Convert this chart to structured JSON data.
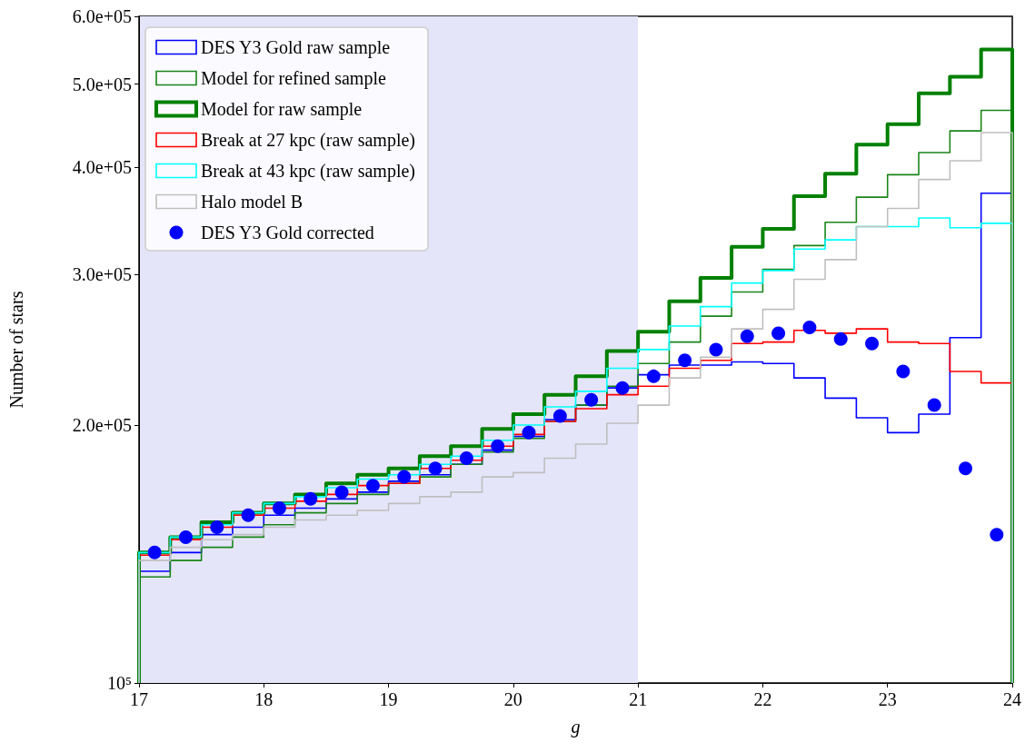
{
  "chart_data": {
    "type": "histogram",
    "xlabel": "g",
    "ylabel": "Number of stars",
    "bins": [
      17,
      17.25,
      17.5,
      17.75,
      18,
      18.25,
      18.5,
      18.75,
      19,
      19.25,
      19.5,
      19.75,
      20,
      20.25,
      20.5,
      20.75,
      21,
      21.25,
      21.5,
      21.75,
      22,
      22.25,
      22.5,
      22.75,
      23,
      23.25,
      23.5,
      23.75,
      24
    ],
    "series": [
      {
        "name": "DES Y3 Gold raw sample",
        "color": "#0000ff",
        "values": [
          135000,
          142000,
          149000,
          152000,
          157000,
          160000,
          164000,
          167000,
          172000,
          175000,
          180000,
          187000,
          194000,
          203000,
          211000,
          221000,
          229000,
          235000,
          235000,
          237000,
          236000,
          227000,
          215000,
          204000,
          196000,
          206000,
          253000,
          373000
        ]
      },
      {
        "name": "Model for refined sample",
        "color": "#1a851a",
        "values": [
          133000,
          139000,
          144000,
          148000,
          153000,
          158000,
          162000,
          166000,
          171000,
          174000,
          180000,
          186000,
          193000,
          202000,
          211000,
          222000,
          236000,
          250000,
          268000,
          286000,
          304000,
          324000,
          345000,
          369000,
          392000,
          416000,
          441000,
          466000
        ]
      },
      {
        "name": "Model for raw sample",
        "color": "#008000",
        "values": [
          142000,
          148000,
          154000,
          158000,
          162000,
          166000,
          171000,
          175000,
          178000,
          184000,
          189000,
          198000,
          206000,
          217000,
          228000,
          244000,
          257000,
          279000,
          297000,
          323000,
          339000,
          370000,
          393000,
          425000,
          449000,
          488000,
          510000,
          549000
        ]
      },
      {
        "name": "Break at 27 kpc (raw sample)",
        "color": "#ff0000",
        "values": [
          141000,
          147000,
          152000,
          157000,
          160000,
          163000,
          166000,
          170000,
          171000,
          178000,
          182000,
          189000,
          195000,
          202000,
          209000,
          217000,
          222000,
          233000,
          238000,
          249000,
          250000,
          258000,
          256000,
          259000,
          250000,
          249000,
          231000,
          224000
        ]
      },
      {
        "name": "Break at 43 kpc (raw sample)",
        "color": "#00ffff",
        "values": [
          142000,
          148000,
          153000,
          158000,
          162000,
          165000,
          169000,
          173000,
          175000,
          180000,
          184000,
          192000,
          200000,
          210000,
          219000,
          233000,
          245000,
          261000,
          275000,
          293000,
          303000,
          321000,
          329000,
          341000,
          341000,
          349000,
          340000,
          344000
        ]
      },
      {
        "name": "Halo model B",
        "color": "#bfbfbf",
        "values": [
          139000,
          144000,
          147000,
          149000,
          152000,
          155000,
          157000,
          159000,
          162000,
          165000,
          167000,
          174000,
          176000,
          183000,
          190000,
          201000,
          211000,
          227000,
          240000,
          259000,
          273000,
          296000,
          312000,
          341000,
          358000,
          387000,
          407000,
          439000
        ]
      },
      {
        "name": "DES Y3 Gold corrected",
        "type": "scatter",
        "color": "#0000ff",
        "x": [
          17.125,
          17.375,
          17.625,
          17.875,
          18.125,
          18.375,
          18.625,
          18.875,
          19.125,
          19.375,
          19.625,
          19.875,
          20.125,
          20.375,
          20.625,
          20.875,
          21.125,
          21.375,
          21.625,
          21.875,
          22.125,
          22.375,
          22.625,
          22.875,
          23.125,
          23.375,
          23.625,
          23.875
        ],
        "values": [
          142000,
          148000,
          152000,
          157000,
          160000,
          164000,
          167000,
          170000,
          174000,
          178000,
          183000,
          189000,
          196000,
          205000,
          214000,
          221000,
          228000,
          238000,
          245000,
          254000,
          256000,
          260000,
          252000,
          249000,
          231000,
          211000,
          178000,
          149000
        ]
      }
    ],
    "xlim": [
      17,
      24
    ],
    "xticks": [
      17,
      18,
      19,
      20,
      21,
      22,
      23,
      24
    ],
    "ylim": [
      100000,
      600000
    ],
    "yticks": [
      {
        "value": 100000,
        "label": "10⁵"
      },
      {
        "value": 200000,
        "label": "2.0e+05"
      },
      {
        "value": 300000,
        "label": "3.0e+05"
      },
      {
        "value": 400000,
        "label": "4.0e+05"
      },
      {
        "value": 500000,
        "label": "5.0e+05"
      },
      {
        "value": 600000,
        "label": "6.0e+05"
      }
    ],
    "log": "y",
    "legend": "top left",
    "marker": "circle",
    "bands": [
      {
        "axis": "x",
        "from": 17,
        "to": 21,
        "color": "#e5e5fa"
      }
    ]
  }
}
